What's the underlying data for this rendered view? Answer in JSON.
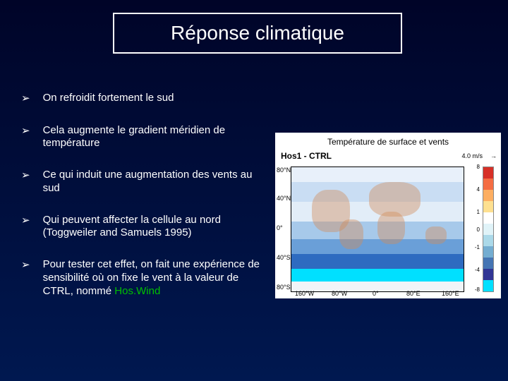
{
  "title": "Réponse climatique",
  "bullets": [
    "On refroidit fortement le sud",
    "Cela augmente le gradient méridien de température",
    "Ce qui induit une augmentation des vents au sud",
    "Qui peuvent affecter la cellule au nord (Toggweiler and Samuels 1995)",
    "Pour tester cet effet, on fait une expérience de sensibilité où on fixe le vent à la valeur de CTRL, nommé "
  ],
  "hoswind": "Hos.Wind",
  "figure": {
    "title": "Température de surface et vents",
    "label": "Hos1 - CTRL",
    "wind_ref": "4.0 m/s",
    "arrow": "→",
    "y_ticks": [
      "80°N",
      "40°N",
      "0°",
      "40°S",
      "80°S"
    ],
    "x_ticks": [
      "160°W",
      "80°W",
      "0°",
      "80°E",
      "160°E"
    ],
    "lat_bands": [
      {
        "top_pct": 0,
        "height_pct": 12,
        "color": "#e8f0fa"
      },
      {
        "top_pct": 12,
        "height_pct": 16,
        "color": "#c9ddf3"
      },
      {
        "top_pct": 28,
        "height_pct": 16,
        "color": "#e2edf8"
      },
      {
        "top_pct": 44,
        "height_pct": 14,
        "color": "#a7c9ea"
      },
      {
        "top_pct": 58,
        "height_pct": 12,
        "color": "#6a9fd8"
      },
      {
        "top_pct": 70,
        "height_pct": 12,
        "color": "#2e6bc0"
      },
      {
        "top_pct": 82,
        "height_pct": 10,
        "color": "#00e0ff"
      },
      {
        "top_pct": 92,
        "height_pct": 8,
        "color": "#f0f4f8"
      }
    ],
    "continents": [
      {
        "left_pct": 12,
        "top_pct": 18,
        "w_pct": 22,
        "h_pct": 34
      },
      {
        "left_pct": 28,
        "top_pct": 42,
        "w_pct": 14,
        "h_pct": 24
      },
      {
        "left_pct": 45,
        "top_pct": 12,
        "w_pct": 30,
        "h_pct": 28
      },
      {
        "left_pct": 50,
        "top_pct": 36,
        "w_pct": 16,
        "h_pct": 26
      },
      {
        "left_pct": 78,
        "top_pct": 48,
        "w_pct": 12,
        "h_pct": 14
      }
    ],
    "colorbar": {
      "colors": [
        "#d73027",
        "#f46d43",
        "#fdae61",
        "#fee090",
        "#ffffff",
        "#e0f3f8",
        "#abd9e9",
        "#74add1",
        "#4575b4",
        "#313695",
        "#00e0ff"
      ],
      "labels": [
        {
          "pos_pct": 0,
          "text": "8"
        },
        {
          "pos_pct": 18,
          "text": "4"
        },
        {
          "pos_pct": 36,
          "text": "1"
        },
        {
          "pos_pct": 50,
          "text": "0"
        },
        {
          "pos_pct": 64,
          "text": "-1"
        },
        {
          "pos_pct": 82,
          "text": "-4"
        },
        {
          "pos_pct": 98,
          "text": "-8"
        }
      ]
    }
  },
  "style": {
    "bg_top": "#000428",
    "bg_bottom": "#001850",
    "title_border": "#ffffff",
    "text_color": "#ffffff",
    "title_fontsize": 28,
    "bullet_fontsize": 15,
    "hoswind_color": "#00c000",
    "bullet_marker": "➢"
  }
}
